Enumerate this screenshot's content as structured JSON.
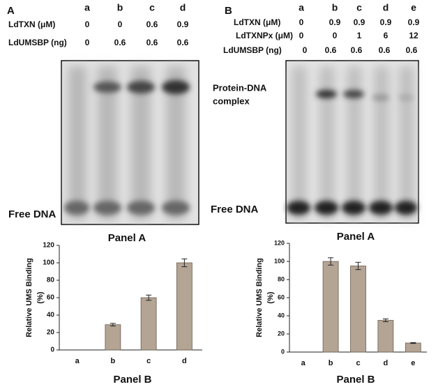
{
  "figure_a": {
    "letter": "A",
    "lanes": [
      "a",
      "b",
      "c",
      "d"
    ],
    "rows": [
      {
        "label": "LdTXN (μM)",
        "values": [
          0,
          0,
          0.6,
          0.9
        ]
      },
      {
        "label": "LdUMSBP (ng)",
        "values": [
          0,
          0.6,
          0.6,
          0.6
        ]
      }
    ],
    "gel_labels": [
      "Free DNA"
    ],
    "caption": "Panel A"
  },
  "figure_b": {
    "letter": "B",
    "lanes": [
      "a",
      "b",
      "c",
      "d",
      "e"
    ],
    "rows": [
      {
        "label": "LdTXN (μM)",
        "values": [
          0,
          0.9,
          0.9,
          0.9,
          0.9
        ]
      },
      {
        "label": "LdTXNPx (μM)",
        "values": [
          0,
          0,
          1,
          6,
          12
        ]
      },
      {
        "label": "LdUMSBP (ng)",
        "values": [
          0,
          0.6,
          0.6,
          0.6,
          0.6
        ]
      }
    ],
    "gel_labels": [
      "Protein-DNA",
      "complex",
      "Free DNA"
    ],
    "caption": "Panel A"
  },
  "chart_data": [
    {
      "type": "bar",
      "ylabel": [
        "Relative UMS Binding",
        "(%)"
      ],
      "xlabel": "Panel B",
      "categories": [
        "a",
        "b",
        "c",
        "d"
      ],
      "values": [
        0,
        29,
        60,
        100
      ],
      "errors": [
        null,
        1.5,
        3,
        4.5
      ],
      "color": "#b3a494",
      "ylim": [
        0,
        120
      ],
      "yticks": [
        0,
        20,
        40,
        60,
        80,
        100,
        120
      ]
    },
    {
      "type": "bar",
      "ylabel": [
        "Relative UMS Binding",
        "(%)"
      ],
      "xlabel": "Panel B",
      "categories": [
        "a",
        "b",
        "c",
        "d",
        "e"
      ],
      "values": [
        0,
        100,
        95,
        35,
        10
      ],
      "errors": [
        null,
        4,
        4,
        1.5,
        0.5
      ],
      "color": "#b3a494",
      "ylim": [
        0,
        120
      ],
      "yticks": [
        0,
        20,
        40,
        60,
        80,
        100,
        120
      ]
    }
  ]
}
